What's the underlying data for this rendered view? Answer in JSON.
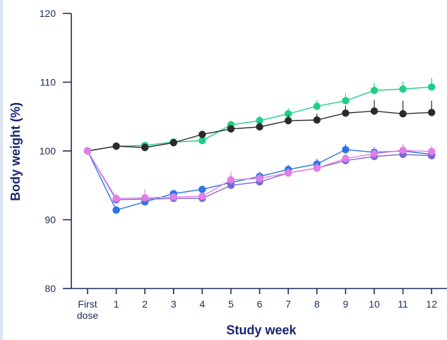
{
  "chart_data": {
    "type": "line",
    "xlabel": "Study week",
    "ylabel": "Body weight (%)",
    "ylim": [
      80,
      120
    ],
    "yticks": [
      80,
      90,
      100,
      110,
      120
    ],
    "categories": [
      [
        "First",
        "dose"
      ],
      [
        "1"
      ],
      [
        "2"
      ],
      [
        "3"
      ],
      [
        "4"
      ],
      [
        "5"
      ],
      [
        "6"
      ],
      [
        "7"
      ],
      [
        "8"
      ],
      [
        "9"
      ],
      [
        "10"
      ],
      [
        "11"
      ],
      [
        "12"
      ]
    ],
    "series": [
      {
        "color": "#1fcf85",
        "values": [
          100,
          100.7,
          100.8,
          101.3,
          101.5,
          103.8,
          104.4,
          105.4,
          106.5,
          107.3,
          108.8,
          109.0,
          109.3
        ],
        "errors": [
          0.2,
          0.3,
          0.4,
          0.4,
          0.5,
          0.6,
          0.7,
          0.8,
          0.9,
          1.0,
          1.1,
          1.1,
          1.3
        ]
      },
      {
        "color": "#2b2b2b",
        "values": [
          100,
          100.7,
          100.5,
          101.2,
          102.4,
          103.2,
          103.5,
          104.4,
          104.5,
          105.5,
          105.8,
          105.4,
          105.6
        ],
        "errors": [
          0.2,
          0.3,
          0.4,
          0.4,
          0.5,
          0.6,
          0.7,
          0.8,
          0.9,
          1.1,
          1.6,
          1.9,
          1.7
        ]
      },
      {
        "color": "#2d74e6",
        "values": [
          100,
          91.4,
          92.6,
          93.8,
          94.4,
          95.4,
          96.3,
          97.3,
          98.1,
          100.2,
          99.8,
          100.0,
          99.5
        ],
        "errors": [
          0.2,
          0.6,
          0.6,
          0.5,
          0.5,
          0.6,
          0.7,
          0.7,
          0.8,
          0.8,
          0.8,
          0.8,
          0.8
        ]
      },
      {
        "color": "#7a67d6",
        "values": [
          100,
          92.9,
          93.0,
          93.1,
          93.1,
          95.0,
          95.5,
          96.8,
          97.5,
          98.6,
          99.2,
          99.5,
          99.3
        ],
        "errors": [
          0.2,
          0.6,
          0.6,
          0.5,
          0.5,
          0.6,
          0.6,
          0.7,
          0.7,
          0.8,
          0.8,
          0.8,
          0.8
        ]
      },
      {
        "color": "#e07fe6",
        "values": [
          100,
          93.1,
          93.2,
          93.3,
          93.4,
          95.8,
          96.0,
          96.8,
          97.5,
          98.9,
          99.6,
          100.1,
          99.9
        ],
        "errors": [
          0.2,
          0.7,
          1.2,
          0.6,
          0.6,
          1.2,
          0.8,
          0.7,
          0.8,
          0.8,
          0.8,
          0.9,
          0.8
        ]
      }
    ]
  }
}
